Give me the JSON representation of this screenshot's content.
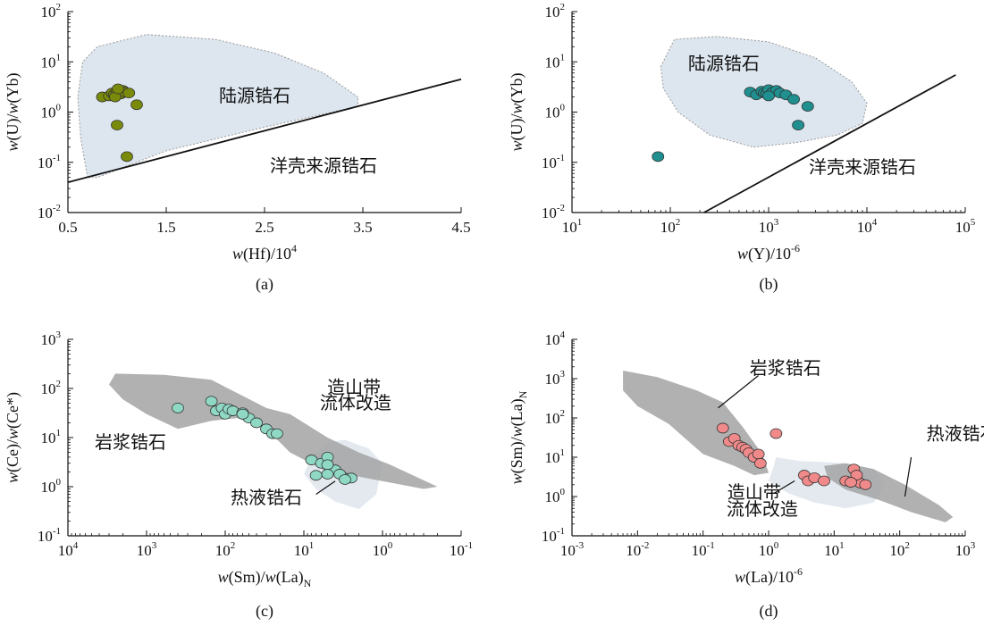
{
  "colors": {
    "accent_a": "#7a8a0a",
    "accent_b": "#1f8f8f",
    "accent_c": "#8fd9c4",
    "accent_d": "#f08a8a",
    "field_light": "#dde6ef",
    "field_dark": "#9a9a9a"
  },
  "chart_data": [
    {
      "type": "scatter",
      "panel_label": "(a)",
      "xlabel_parts": [
        "w",
        "(Hf)",
        "/10",
        "4"
      ],
      "ylabel_parts": [
        "w",
        "(U)/",
        "w",
        "(Yb)"
      ],
      "xscale": "linear",
      "xlim": [
        0.5,
        4.5
      ],
      "yscale": "log",
      "ylim": [
        0.01,
        100
      ],
      "xticks": [
        {
          "v": 0.5,
          "t": "0.5"
        },
        {
          "v": 1.5,
          "t": "1.5"
        },
        {
          "v": 2.5,
          "t": "2.5"
        },
        {
          "v": 3.5,
          "t": "3.5"
        },
        {
          "v": 4.5,
          "t": "4.5"
        }
      ],
      "yticks": [
        {
          "v": 0.01,
          "b": "10",
          "e": "-2"
        },
        {
          "v": 0.1,
          "b": "10",
          "e": "-1"
        },
        {
          "v": 1,
          "b": "10",
          "e": "0"
        },
        {
          "v": 10,
          "b": "10",
          "e": "1"
        },
        {
          "v": 100,
          "b": "10",
          "e": "2"
        }
      ],
      "fields": [
        {
          "points": [
            [
              0.7,
              0.05
            ],
            [
              0.63,
              0.3
            ],
            [
              0.6,
              2
            ],
            [
              0.65,
              10
            ],
            [
              0.8,
              20
            ],
            [
              1.3,
              35
            ],
            [
              2.0,
              28
            ],
            [
              2.6,
              15
            ],
            [
              3.1,
              6
            ],
            [
              3.45,
              2
            ],
            [
              3.45,
              1.3
            ],
            [
              2.5,
              0.5
            ],
            [
              1.5,
              0.17
            ],
            [
              0.8,
              0.05
            ]
          ],
          "fill": "#dde6ef",
          "stroke": "#999999",
          "dashed": true
        }
      ],
      "lines": [
        {
          "x": [
            0.5,
            4.5
          ],
          "y": [
            0.04,
            4.5
          ]
        }
      ],
      "labels": [
        {
          "text": "陆源锆石",
          "x": 2.4,
          "y": 1.6
        },
        {
          "text": "洋壳来源锆石",
          "x": 3.1,
          "y": 0.065
        }
      ],
      "points": {
        "color": "#7a8a0a",
        "x": [
          0.85,
          0.92,
          0.95,
          0.97,
          1.0,
          1.02,
          1.04,
          1.06,
          1.08,
          1.12,
          1.2,
          1.0,
          1.1,
          0.98,
          1.01
        ],
        "y": [
          2.0,
          2.1,
          2.4,
          2.2,
          2.6,
          2.8,
          2.3,
          2.7,
          2.5,
          2.4,
          1.4,
          0.55,
          0.13,
          2.0,
          2.9
        ]
      }
    },
    {
      "type": "scatter",
      "panel_label": "(b)",
      "xlabel_parts": [
        "w",
        "(Y)/10",
        "-6"
      ],
      "ylabel_parts": [
        "w",
        "(U)/",
        "w",
        "(Yb)"
      ],
      "xscale": "log",
      "xlim": [
        10,
        100000
      ],
      "yscale": "log",
      "ylim": [
        0.01,
        100
      ],
      "xticks": [
        {
          "v": 10,
          "b": "10",
          "e": "1"
        },
        {
          "v": 100,
          "b": "10",
          "e": "2"
        },
        {
          "v": 1000,
          "b": "10",
          "e": "3"
        },
        {
          "v": 10000,
          "b": "10",
          "e": "4"
        },
        {
          "v": 100000,
          "b": "10",
          "e": "5"
        }
      ],
      "yticks": [
        {
          "v": 0.01,
          "b": "10",
          "e": "-2"
        },
        {
          "v": 0.1,
          "b": "10",
          "e": "-1"
        },
        {
          "v": 1,
          "b": "10",
          "e": "0"
        },
        {
          "v": 10,
          "b": "10",
          "e": "1"
        },
        {
          "v": 100,
          "b": "10",
          "e": "2"
        }
      ],
      "fields": [
        {
          "points": [
            [
              80,
              8
            ],
            [
              110,
              28
            ],
            [
              300,
              32
            ],
            [
              1000,
              25
            ],
            [
              3000,
              12
            ],
            [
              7000,
              4
            ],
            [
              10000,
              1.5
            ],
            [
              9000,
              0.6
            ],
            [
              5000,
              0.35
            ],
            [
              2000,
              0.25
            ],
            [
              700,
              0.2
            ],
            [
              250,
              0.35
            ],
            [
              120,
              1
            ],
            [
              85,
              3
            ]
          ],
          "fill": "#dde6ef",
          "stroke": "#999999",
          "dashed": true
        }
      ],
      "lines": [
        {
          "x": [
            220,
            80000
          ],
          "y": [
            0.01,
            5.5
          ]
        }
      ],
      "labels": [
        {
          "text": "陆源锆石",
          "x": 350,
          "y": 7
        },
        {
          "text": "洋壳来源锆石",
          "x": 9000,
          "y": 0.06
        }
      ],
      "points": {
        "color": "#1f8f8f",
        "x": [
          75,
          650,
          750,
          850,
          900,
          950,
          1000,
          1100,
          1200,
          1300,
          1500,
          1800,
          2000,
          2500,
          1000
        ],
        "y": [
          0.13,
          2.5,
          2.2,
          2.6,
          2.4,
          2.3,
          2.8,
          2.5,
          2.7,
          2.4,
          2.2,
          1.8,
          0.55,
          1.3,
          2.1
        ]
      }
    },
    {
      "type": "scatter",
      "panel_label": "(c)",
      "xlabel_parts": [
        "w",
        "(Sm)/",
        "w",
        "(La)",
        "N"
      ],
      "ylabel_parts": [
        "w",
        "(Ce)/",
        "w",
        "(Ce*)"
      ],
      "xscale": "log-reversed",
      "xlim": [
        10000,
        0.1
      ],
      "yscale": "log",
      "ylim": [
        0.1,
        1000
      ],
      "xticks": [
        {
          "v": 10000,
          "b": "10",
          "e": "4"
        },
        {
          "v": 1000,
          "b": "10",
          "e": "3"
        },
        {
          "v": 100,
          "b": "10",
          "e": "2"
        },
        {
          "v": 10,
          "b": "10",
          "e": "1"
        },
        {
          "v": 1,
          "b": "10",
          "e": "0"
        },
        {
          "v": 0.1,
          "b": "10",
          "e": "-1"
        }
      ],
      "yticks": [
        {
          "v": 0.1,
          "b": "10",
          "e": "-1"
        },
        {
          "v": 1,
          "b": "10",
          "e": "0"
        },
        {
          "v": 10,
          "b": "10",
          "e": "1"
        },
        {
          "v": 100,
          "b": "10",
          "e": "2"
        },
        {
          "v": 1000,
          "b": "10",
          "e": "3"
        }
      ],
      "fields": [
        {
          "points": [
            [
              8,
              4
            ],
            [
              5,
              8
            ],
            [
              3,
              9
            ],
            [
              1.5,
              6
            ],
            [
              1,
              3
            ],
            [
              1.2,
              0.7
            ],
            [
              2,
              0.35
            ],
            [
              4,
              0.5
            ],
            [
              7,
              0.9
            ],
            [
              10,
              1.8
            ]
          ],
          "fill": "#e3e9ef",
          "stroke": "none",
          "dashed": false
        },
        {
          "points": [
            [
              2500,
              200
            ],
            [
              600,
              190
            ],
            [
              150,
              150
            ],
            [
              70,
              80
            ],
            [
              30,
              40
            ],
            [
              15,
              30
            ],
            [
              5,
              10
            ],
            [
              2,
              5
            ],
            [
              0.8,
              2.8
            ],
            [
              0.2,
              1.0
            ],
            [
              0.3,
              0.9
            ],
            [
              2,
              1.6
            ],
            [
              5,
              2.0
            ],
            [
              15,
              5
            ],
            [
              30,
              15
            ],
            [
              70,
              25
            ],
            [
              150,
              22
            ],
            [
              400,
              15
            ],
            [
              1000,
              30
            ],
            [
              2000,
              60
            ],
            [
              3000,
              120
            ]
          ],
          "fill": "#a3a3a3",
          "stroke": "none",
          "dashed": false
        }
      ],
      "lines": [
        {
          "x": [
            7,
            4
          ],
          "y": [
            0.7,
            1.3
          ]
        }
      ],
      "labels": [
        {
          "text": "岩浆锆石",
          "x": 1600,
          "y": 6
        },
        {
          "text": "造山带",
          "x": 2.3,
          "y": 80
        },
        {
          "text": "流体改造",
          "x": 2.2,
          "y": 38
        },
        {
          "text": "热液锆石",
          "x": 30,
          "y": 0.45
        }
      ],
      "points": {
        "color": "#8fd9c4",
        "x": [
          400,
          150,
          130,
          110,
          100,
          90,
          80,
          60,
          50,
          40,
          30,
          25,
          60,
          22,
          8,
          6,
          5,
          4,
          5,
          3,
          3.5,
          2.5,
          3,
          5,
          7
        ],
        "y": [
          40,
          55,
          35,
          40,
          30,
          38,
          35,
          32,
          25,
          20,
          15,
          12,
          30,
          12,
          3.5,
          3,
          4,
          2.2,
          2.8,
          1.5,
          1.8,
          1.5,
          1.4,
          1.8,
          1.7
        ]
      }
    },
    {
      "type": "scatter",
      "panel_label": "(d)",
      "xlabel_parts": [
        "w",
        "(La)/10",
        "-6"
      ],
      "ylabel_parts": [
        "w",
        "(Sm)/",
        "w",
        "(La)",
        "N"
      ],
      "xscale": "log",
      "xlim": [
        0.001,
        1000
      ],
      "yscale": "log",
      "ylim": [
        0.1,
        10000
      ],
      "xticks": [
        {
          "v": 0.001,
          "b": "10",
          "e": "-3"
        },
        {
          "v": 0.01,
          "b": "10",
          "e": "-2"
        },
        {
          "v": 0.1,
          "b": "10",
          "e": "-1"
        },
        {
          "v": 1,
          "b": "10",
          "e": "0"
        },
        {
          "v": 10,
          "b": "10",
          "e": "1"
        },
        {
          "v": 100,
          "b": "10",
          "e": "2"
        },
        {
          "v": 1000,
          "b": "10",
          "e": "3"
        }
      ],
      "yticks": [
        {
          "v": 0.1,
          "b": "10",
          "e": "-1"
        },
        {
          "v": 1,
          "b": "10",
          "e": "0"
        },
        {
          "v": 10,
          "b": "10",
          "e": "1"
        },
        {
          "v": 100,
          "b": "10",
          "e": "2"
        },
        {
          "v": 1000,
          "b": "10",
          "e": "3"
        },
        {
          "v": 10000,
          "b": "10",
          "e": "4"
        }
      ],
      "fields": [
        {
          "points": [
            [
              1.3,
              10
            ],
            [
              3,
              8
            ],
            [
              15,
              7
            ],
            [
              40,
              5
            ],
            [
              60,
              2
            ],
            [
              40,
              0.7
            ],
            [
              15,
              0.5
            ],
            [
              5,
              0.7
            ],
            [
              2,
              1.2
            ],
            [
              1,
              2.5
            ],
            [
              1.2,
              6
            ]
          ],
          "fill": "#e3e9ef",
          "stroke": "none",
          "dashed": false
        },
        {
          "points": [
            [
              0.006,
              1600
            ],
            [
              0.02,
              1100
            ],
            [
              0.08,
              500
            ],
            [
              0.2,
              250
            ],
            [
              0.4,
              60
            ],
            [
              0.8,
              12
            ],
            [
              1.0,
              4
            ],
            [
              0.6,
              3.5
            ],
            [
              0.3,
              6
            ],
            [
              0.1,
              12
            ],
            [
              0.03,
              70
            ],
            [
              0.01,
              200
            ],
            [
              0.006,
              500
            ]
          ],
          "fill": "#a3a3a3",
          "stroke": "none",
          "dashed": false
        },
        {
          "points": [
            [
              7,
              6
            ],
            [
              15,
              7
            ],
            [
              40,
              5
            ],
            [
              120,
              2
            ],
            [
              400,
              0.6
            ],
            [
              650,
              0.3
            ],
            [
              500,
              0.22
            ],
            [
              150,
              0.4
            ],
            [
              50,
              0.8
            ],
            [
              15,
              1.5
            ],
            [
              8,
              3
            ]
          ],
          "fill": "#a3a3a3",
          "stroke": "none",
          "dashed": false
        }
      ],
      "lines": [
        {
          "x": [
            0.7,
            0.17
          ],
          "y": [
            1200,
            180
          ]
        },
        {
          "x": [
            150,
            120
          ],
          "y": [
            10,
            1
          ]
        },
        {
          "x": [
            2.5,
            1.2
          ],
          "y": [
            2.5,
            1.2
          ]
        }
      ],
      "labels": [
        {
          "text": "岩浆锆石",
          "x": 1.8,
          "y": 1300
        },
        {
          "text": "热液锆石",
          "x": 900,
          "y": 28
        },
        {
          "text": "造山带",
          "x": 0.6,
          "y": 0.9
        },
        {
          "text": "流体改造",
          "x": 0.8,
          "y": 0.33
        }
      ],
      "points": {
        "color": "#f08a8a",
        "x": [
          0.2,
          0.25,
          0.3,
          0.35,
          0.4,
          0.45,
          0.5,
          0.6,
          0.7,
          0.75,
          1.3,
          3.5,
          4.0,
          5.0,
          7.0,
          15,
          20,
          25,
          30,
          22,
          18
        ],
        "y": [
          55,
          25,
          30,
          20,
          18,
          16,
          13,
          10,
          12,
          7,
          40,
          3.5,
          2.5,
          3,
          2.5,
          2.5,
          5,
          2.2,
          2,
          3.5,
          2.3
        ]
      }
    }
  ]
}
